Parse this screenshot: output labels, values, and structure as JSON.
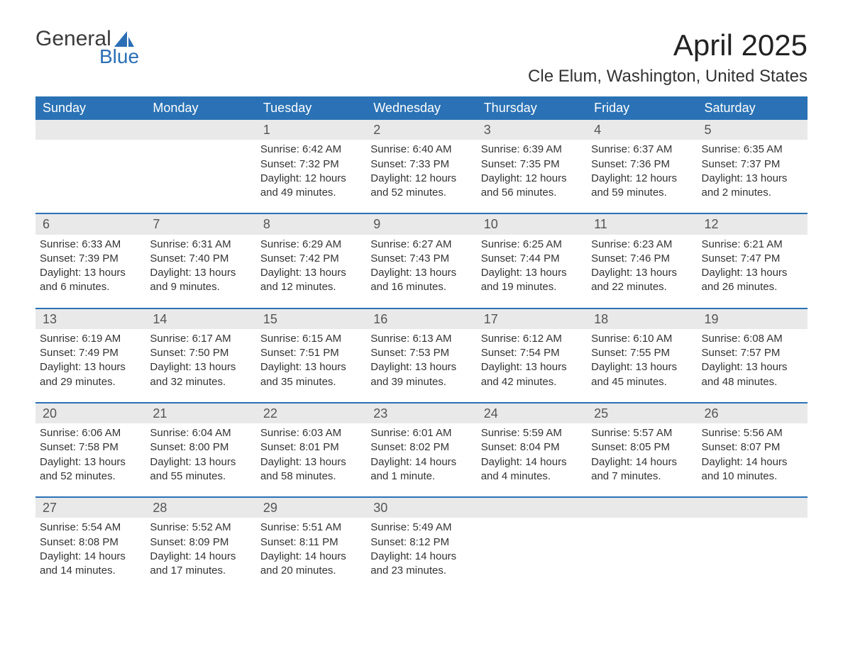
{
  "logo": {
    "top": "General",
    "bottom": "Blue"
  },
  "title": "April 2025",
  "location": "Cle Elum, Washington, United States",
  "colors": {
    "header_bg": "#2a72b5",
    "header_text": "#ffffff",
    "daynum_bg": "#e9e9e9",
    "logo_blue": "#2a6fb5",
    "text": "#333333"
  },
  "day_labels": [
    "Sunday",
    "Monday",
    "Tuesday",
    "Wednesday",
    "Thursday",
    "Friday",
    "Saturday"
  ],
  "weeks": [
    [
      null,
      null,
      {
        "n": "1",
        "sr": "Sunrise: 6:42 AM",
        "ss": "Sunset: 7:32 PM",
        "dl": "Daylight: 12 hours and 49 minutes."
      },
      {
        "n": "2",
        "sr": "Sunrise: 6:40 AM",
        "ss": "Sunset: 7:33 PM",
        "dl": "Daylight: 12 hours and 52 minutes."
      },
      {
        "n": "3",
        "sr": "Sunrise: 6:39 AM",
        "ss": "Sunset: 7:35 PM",
        "dl": "Daylight: 12 hours and 56 minutes."
      },
      {
        "n": "4",
        "sr": "Sunrise: 6:37 AM",
        "ss": "Sunset: 7:36 PM",
        "dl": "Daylight: 12 hours and 59 minutes."
      },
      {
        "n": "5",
        "sr": "Sunrise: 6:35 AM",
        "ss": "Sunset: 7:37 PM",
        "dl": "Daylight: 13 hours and 2 minutes."
      }
    ],
    [
      {
        "n": "6",
        "sr": "Sunrise: 6:33 AM",
        "ss": "Sunset: 7:39 PM",
        "dl": "Daylight: 13 hours and 6 minutes."
      },
      {
        "n": "7",
        "sr": "Sunrise: 6:31 AM",
        "ss": "Sunset: 7:40 PM",
        "dl": "Daylight: 13 hours and 9 minutes."
      },
      {
        "n": "8",
        "sr": "Sunrise: 6:29 AM",
        "ss": "Sunset: 7:42 PM",
        "dl": "Daylight: 13 hours and 12 minutes."
      },
      {
        "n": "9",
        "sr": "Sunrise: 6:27 AM",
        "ss": "Sunset: 7:43 PM",
        "dl": "Daylight: 13 hours and 16 minutes."
      },
      {
        "n": "10",
        "sr": "Sunrise: 6:25 AM",
        "ss": "Sunset: 7:44 PM",
        "dl": "Daylight: 13 hours and 19 minutes."
      },
      {
        "n": "11",
        "sr": "Sunrise: 6:23 AM",
        "ss": "Sunset: 7:46 PM",
        "dl": "Daylight: 13 hours and 22 minutes."
      },
      {
        "n": "12",
        "sr": "Sunrise: 6:21 AM",
        "ss": "Sunset: 7:47 PM",
        "dl": "Daylight: 13 hours and 26 minutes."
      }
    ],
    [
      {
        "n": "13",
        "sr": "Sunrise: 6:19 AM",
        "ss": "Sunset: 7:49 PM",
        "dl": "Daylight: 13 hours and 29 minutes."
      },
      {
        "n": "14",
        "sr": "Sunrise: 6:17 AM",
        "ss": "Sunset: 7:50 PM",
        "dl": "Daylight: 13 hours and 32 minutes."
      },
      {
        "n": "15",
        "sr": "Sunrise: 6:15 AM",
        "ss": "Sunset: 7:51 PM",
        "dl": "Daylight: 13 hours and 35 minutes."
      },
      {
        "n": "16",
        "sr": "Sunrise: 6:13 AM",
        "ss": "Sunset: 7:53 PM",
        "dl": "Daylight: 13 hours and 39 minutes."
      },
      {
        "n": "17",
        "sr": "Sunrise: 6:12 AM",
        "ss": "Sunset: 7:54 PM",
        "dl": "Daylight: 13 hours and 42 minutes."
      },
      {
        "n": "18",
        "sr": "Sunrise: 6:10 AM",
        "ss": "Sunset: 7:55 PM",
        "dl": "Daylight: 13 hours and 45 minutes."
      },
      {
        "n": "19",
        "sr": "Sunrise: 6:08 AM",
        "ss": "Sunset: 7:57 PM",
        "dl": "Daylight: 13 hours and 48 minutes."
      }
    ],
    [
      {
        "n": "20",
        "sr": "Sunrise: 6:06 AM",
        "ss": "Sunset: 7:58 PM",
        "dl": "Daylight: 13 hours and 52 minutes."
      },
      {
        "n": "21",
        "sr": "Sunrise: 6:04 AM",
        "ss": "Sunset: 8:00 PM",
        "dl": "Daylight: 13 hours and 55 minutes."
      },
      {
        "n": "22",
        "sr": "Sunrise: 6:03 AM",
        "ss": "Sunset: 8:01 PM",
        "dl": "Daylight: 13 hours and 58 minutes."
      },
      {
        "n": "23",
        "sr": "Sunrise: 6:01 AM",
        "ss": "Sunset: 8:02 PM",
        "dl": "Daylight: 14 hours and 1 minute."
      },
      {
        "n": "24",
        "sr": "Sunrise: 5:59 AM",
        "ss": "Sunset: 8:04 PM",
        "dl": "Daylight: 14 hours and 4 minutes."
      },
      {
        "n": "25",
        "sr": "Sunrise: 5:57 AM",
        "ss": "Sunset: 8:05 PM",
        "dl": "Daylight: 14 hours and 7 minutes."
      },
      {
        "n": "26",
        "sr": "Sunrise: 5:56 AM",
        "ss": "Sunset: 8:07 PM",
        "dl": "Daylight: 14 hours and 10 minutes."
      }
    ],
    [
      {
        "n": "27",
        "sr": "Sunrise: 5:54 AM",
        "ss": "Sunset: 8:08 PM",
        "dl": "Daylight: 14 hours and 14 minutes."
      },
      {
        "n": "28",
        "sr": "Sunrise: 5:52 AM",
        "ss": "Sunset: 8:09 PM",
        "dl": "Daylight: 14 hours and 17 minutes."
      },
      {
        "n": "29",
        "sr": "Sunrise: 5:51 AM",
        "ss": "Sunset: 8:11 PM",
        "dl": "Daylight: 14 hours and 20 minutes."
      },
      {
        "n": "30",
        "sr": "Sunrise: 5:49 AM",
        "ss": "Sunset: 8:12 PM",
        "dl": "Daylight: 14 hours and 23 minutes."
      },
      null,
      null,
      null
    ]
  ]
}
